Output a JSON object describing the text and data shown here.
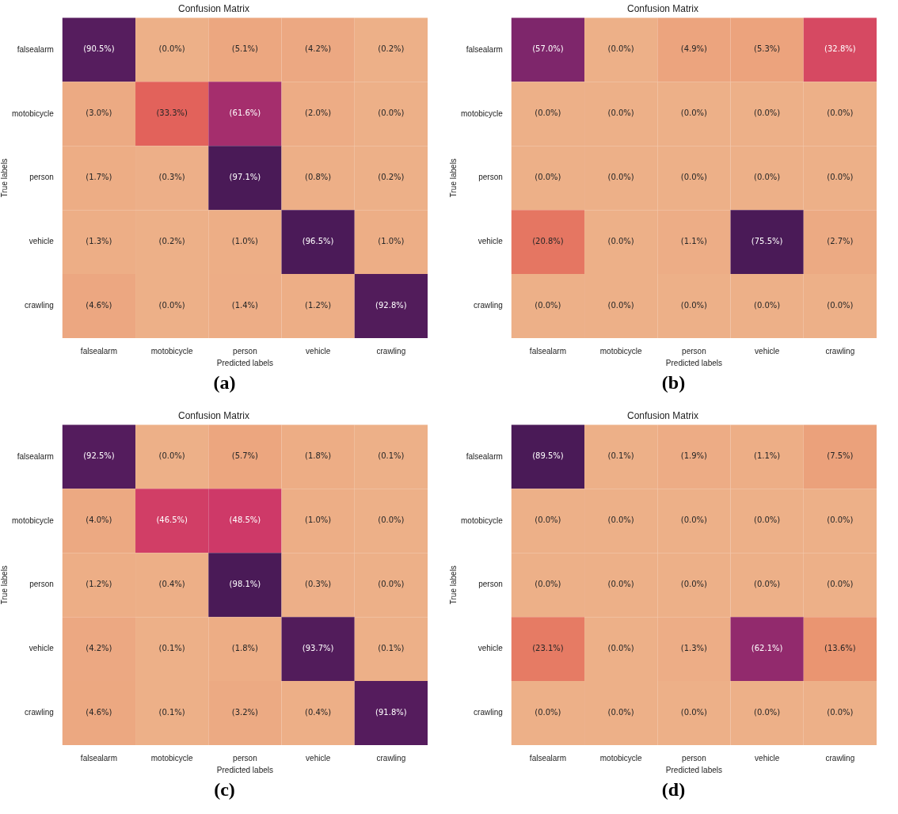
{
  "chart_data": [
    {
      "type": "heatmap",
      "title": "Confusion Matrix",
      "xlabel": "Predicted labels",
      "ylabel": "True labels",
      "categories": [
        "falsealarm",
        "motobicycle",
        "person",
        "vehicle",
        "crawling"
      ],
      "y_categories": [
        "falsealarm",
        "motobicycle",
        "person",
        "vehicle",
        "crawling"
      ],
      "cells": [
        [
          90.5,
          0.0,
          5.1,
          4.2,
          0.2
        ],
        [
          3.0,
          33.3,
          61.6,
          2.0,
          0.0
        ],
        [
          1.7,
          0.3,
          97.1,
          0.8,
          0.2
        ],
        [
          1.3,
          0.2,
          1.0,
          96.5,
          1.0
        ],
        [
          4.6,
          0.0,
          1.4,
          1.2,
          92.8
        ]
      ],
      "cell_labels": [
        [
          "(90.5%)",
          "(0.0%)",
          "(5.1%)",
          "(4.2%)",
          "(0.2%)"
        ],
        [
          "(3.0%)",
          "(33.3%)",
          "(61.6%)",
          "(2.0%)",
          "(0.0%)"
        ],
        [
          "(1.7%)",
          "(0.3%)",
          "(97.1%)",
          "(0.8%)",
          "(0.2%)"
        ],
        [
          "(1.3%)",
          "(0.2%)",
          "(1.0%)",
          "(96.5%)",
          "(1.0%)"
        ],
        [
          "(4.6%)",
          "(0.0%)",
          "(1.4%)",
          "(1.2%)",
          "(92.8%)"
        ]
      ],
      "annotations": [
        "(a)"
      ]
    },
    {
      "type": "heatmap",
      "title": "Confusion Matrix",
      "xlabel": "Predicted labels",
      "ylabel": "True labels",
      "categories": [
        "falsealarm",
        "motobicycle",
        "person",
        "vehicle",
        "crawling"
      ],
      "y_categories": [
        "falsealarm",
        "motobicycle",
        "person",
        "vehicle",
        "crawling"
      ],
      "cells": [
        [
          57.0,
          0.0,
          4.9,
          5.3,
          32.8
        ],
        [
          0.0,
          0.0,
          0.0,
          0.0,
          0.0
        ],
        [
          0.0,
          0.0,
          0.0,
          0.0,
          0.0
        ],
        [
          20.8,
          0.0,
          1.1,
          75.5,
          2.7
        ],
        [
          0.0,
          0.0,
          0.0,
          0.0,
          0.0
        ]
      ],
      "cell_labels": [
        [
          "(57.0%)",
          "(0.0%)",
          "(4.9%)",
          "(5.3%)",
          "(32.8%)"
        ],
        [
          "(0.0%)",
          "(0.0%)",
          "(0.0%)",
          "(0.0%)",
          "(0.0%)"
        ],
        [
          "(0.0%)",
          "(0.0%)",
          "(0.0%)",
          "(0.0%)",
          "(0.0%)"
        ],
        [
          "(20.8%)",
          "(0.0%)",
          "(1.1%)",
          "(75.5%)",
          "(2.7%)"
        ],
        [
          "(0.0%)",
          "(0.0%)",
          "(0.0%)",
          "(0.0%)",
          "(0.0%)"
        ]
      ],
      "annotations": [
        "(b)"
      ]
    },
    {
      "type": "heatmap",
      "title": "Confusion Matrix",
      "xlabel": "Predicted labels",
      "ylabel": "True labels",
      "categories": [
        "falsealarm",
        "motobicycle",
        "person",
        "vehicle",
        "crawling"
      ],
      "y_categories": [
        "falsealarm",
        "motobicycle",
        "person",
        "vehicle",
        "crawling"
      ],
      "cells": [
        [
          92.5,
          0.0,
          5.7,
          1.8,
          0.1
        ],
        [
          4.0,
          46.5,
          48.5,
          1.0,
          0.0
        ],
        [
          1.2,
          0.4,
          98.1,
          0.3,
          0.0
        ],
        [
          4.2,
          0.1,
          1.8,
          93.7,
          0.1
        ],
        [
          4.6,
          0.1,
          3.2,
          0.4,
          91.8
        ]
      ],
      "cell_labels": [
        [
          "(92.5%)",
          "(0.0%)",
          "(5.7%)",
          "(1.8%)",
          "(0.1%)"
        ],
        [
          "(4.0%)",
          "(46.5%)",
          "(48.5%)",
          "(1.0%)",
          "(0.0%)"
        ],
        [
          "(1.2%)",
          "(0.4%)",
          "(98.1%)",
          "(0.3%)",
          "(0.0%)"
        ],
        [
          "(4.2%)",
          "(0.1%)",
          "(1.8%)",
          "(93.7%)",
          "(0.1%)"
        ],
        [
          "(4.6%)",
          "(0.1%)",
          "(3.2%)",
          "(0.4%)",
          "(91.8%)"
        ]
      ],
      "annotations": [
        "(c)"
      ]
    },
    {
      "type": "heatmap",
      "title": "Confusion Matrix",
      "xlabel": "Predicted labels",
      "ylabel": "True labels",
      "categories": [
        "falsealarm",
        "motobicycle",
        "person",
        "vehicle",
        "crawling"
      ],
      "y_categories": [
        "falsealarm",
        "motobicycle",
        "person",
        "vehicle",
        "crawling"
      ],
      "cells": [
        [
          89.5,
          0.1,
          1.9,
          1.1,
          7.5
        ],
        [
          0.0,
          0.0,
          0.0,
          0.0,
          0.0
        ],
        [
          0.0,
          0.0,
          0.0,
          0.0,
          0.0
        ],
        [
          23.1,
          0.0,
          1.3,
          62.1,
          13.6
        ],
        [
          0.0,
          0.0,
          0.0,
          0.0,
          0.0
        ]
      ],
      "cell_labels": [
        [
          "(89.5%)",
          "(0.1%)",
          "(1.9%)",
          "(1.1%)",
          "(7.5%)"
        ],
        [
          "(0.0%)",
          "(0.0%)",
          "(0.0%)",
          "(0.0%)",
          "(0.0%)"
        ],
        [
          "(0.0%)",
          "(0.0%)",
          "(0.0%)",
          "(0.0%)",
          "(0.0%)"
        ],
        [
          "(23.1%)",
          "(0.0%)",
          "(1.3%)",
          "(62.1%)",
          "(13.6%)"
        ],
        [
          "(0.0%)",
          "(0.0%)",
          "(0.0%)",
          "(0.0%)",
          "(0.0%)"
        ]
      ],
      "annotations": [
        "(d)"
      ]
    }
  ]
}
